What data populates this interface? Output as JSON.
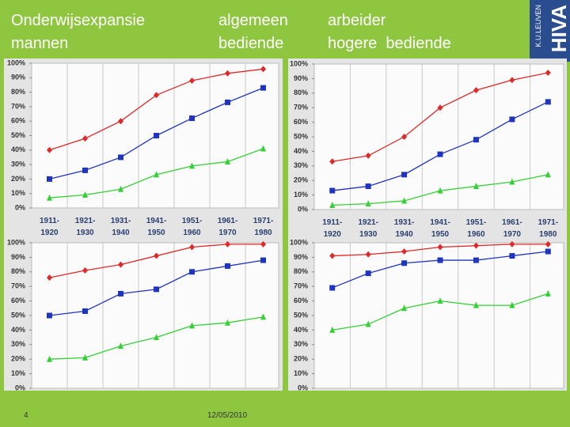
{
  "header": {
    "title_lines": [
      "Onderwijsexpansie",
      "mannen"
    ],
    "label_a_lines": [
      "algemeen",
      "bediende"
    ],
    "label_b_lines": [
      "arbeider",
      "hogere  bediende"
    ]
  },
  "logo": {
    "name": "HIVA",
    "org": "K.U.LEUVEN"
  },
  "footer": {
    "page": "4",
    "date": "12/05/2010"
  },
  "chart_data": [
    {
      "type": "line",
      "categories": [
        "1911-1920",
        "1921-1930",
        "1931-1940",
        "1941-1950",
        "1951-1960",
        "1961-1970",
        "1971-1980"
      ],
      "ylim": [
        0,
        100
      ],
      "yticks": [
        {
          "value": 0,
          "label": "0%"
        },
        {
          "value": 10,
          "label": "10%"
        },
        {
          "value": 20,
          "label": "20%"
        },
        {
          "value": 30,
          "label": "30%"
        },
        {
          "value": 40,
          "label": "40%"
        },
        {
          "value": 50,
          "label": "50%"
        },
        {
          "value": 60,
          "label": "60%"
        },
        {
          "value": 70,
          "label": "70%"
        },
        {
          "value": 80,
          "label": "80%"
        },
        {
          "value": 90,
          "label": "90%"
        },
        {
          "value": 100,
          "label": "100%"
        }
      ],
      "series": [
        {
          "color": "#e02828",
          "marker": "diamond",
          "values": [
            40,
            48,
            60,
            78,
            88,
            93,
            96
          ]
        },
        {
          "color": "#1f35c0",
          "marker": "square",
          "values": [
            20,
            26,
            35,
            50,
            62,
            73,
            83
          ]
        },
        {
          "color": "#35d035",
          "marker": "triangle",
          "values": [
            7,
            9,
            13,
            23,
            29,
            32,
            41
          ]
        }
      ]
    },
    {
      "type": "line",
      "categories": [
        "1911-1920",
        "1921-1930",
        "1931-1940",
        "1941-1950",
        "1951-1960",
        "1961-1970",
        "1971-1980"
      ],
      "ylim": [
        0,
        100
      ],
      "yticks": [
        {
          "value": 0,
          "label": "0%"
        },
        {
          "value": 10,
          "label": "10%"
        },
        {
          "value": 20,
          "label": "20%"
        },
        {
          "value": 30,
          "label": "30%"
        },
        {
          "value": 40,
          "label": "40%"
        },
        {
          "value": 50,
          "label": "50%"
        },
        {
          "value": 60,
          "label": "60%"
        },
        {
          "value": 70,
          "label": "70%"
        },
        {
          "value": 80,
          "label": "80%"
        },
        {
          "value": 90,
          "label": "90%"
        },
        {
          "value": 100,
          "label": "100%"
        }
      ],
      "series": [
        {
          "color": "#e02828",
          "marker": "diamond",
          "values": [
            33,
            37,
            50,
            70,
            82,
            89,
            94
          ]
        },
        {
          "color": "#1f35c0",
          "marker": "square",
          "values": [
            13,
            16,
            24,
            38,
            48,
            62,
            74
          ]
        },
        {
          "color": "#35d035",
          "marker": "triangle",
          "values": [
            3,
            4,
            6,
            13,
            16,
            19,
            24
          ]
        }
      ]
    },
    {
      "type": "line",
      "ylim": [
        0,
        100
      ],
      "yticks": [
        {
          "value": 0,
          "label": "0%"
        },
        {
          "value": 10,
          "label": "10%"
        },
        {
          "value": 20,
          "label": "20%"
        },
        {
          "value": 30,
          "label": "30%"
        },
        {
          "value": 40,
          "label": "40%"
        },
        {
          "value": 50,
          "label": "50%"
        },
        {
          "value": 60,
          "label": "60%"
        },
        {
          "value": 70,
          "label": "70%"
        },
        {
          "value": 80,
          "label": "80%"
        },
        {
          "value": 90,
          "label": "90%"
        },
        {
          "value": 100,
          "label": "100%"
        }
      ],
      "series": [
        {
          "color": "#e02828",
          "marker": "diamond",
          "values": [
            76,
            81,
            85,
            91,
            97,
            99,
            99
          ]
        },
        {
          "color": "#1f35c0",
          "marker": "square",
          "values": [
            50,
            53,
            65,
            68,
            80,
            84,
            88
          ]
        },
        {
          "color": "#35d035",
          "marker": "triangle",
          "values": [
            20,
            21,
            29,
            35,
            43,
            45,
            49
          ]
        }
      ]
    },
    {
      "type": "line",
      "ylim": [
        0,
        100
      ],
      "yticks": [
        {
          "value": 0,
          "label": "0%"
        },
        {
          "value": 10,
          "label": "10%"
        },
        {
          "value": 20,
          "label": "20%"
        },
        {
          "value": 30,
          "label": "30%"
        },
        {
          "value": 40,
          "label": "40%"
        },
        {
          "value": 50,
          "label": "50%"
        },
        {
          "value": 60,
          "label": "60%"
        },
        {
          "value": 70,
          "label": "70%"
        },
        {
          "value": 80,
          "label": "80%"
        },
        {
          "value": 90,
          "label": "90%"
        },
        {
          "value": 100,
          "label": "100%"
        }
      ],
      "series": [
        {
          "color": "#e02828",
          "marker": "diamond",
          "values": [
            91,
            92,
            94,
            97,
            98,
            99,
            99
          ]
        },
        {
          "color": "#1f35c0",
          "marker": "square",
          "values": [
            69,
            79,
            86,
            88,
            88,
            91,
            94
          ]
        },
        {
          "color": "#35d035",
          "marker": "triangle",
          "values": [
            40,
            44,
            55,
            60,
            57,
            57,
            65
          ]
        }
      ]
    }
  ]
}
